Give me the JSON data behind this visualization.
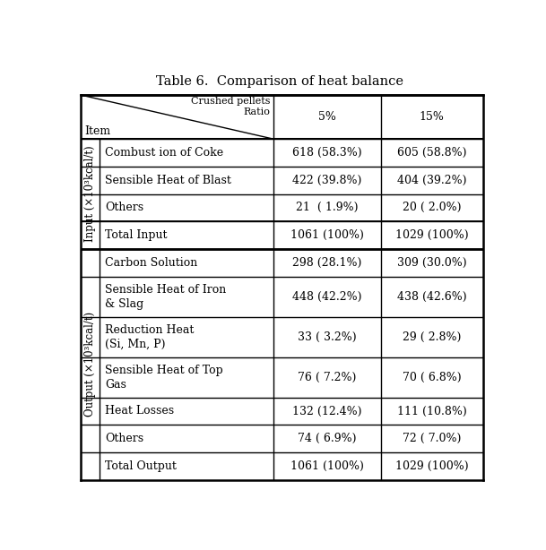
{
  "title": "Table 6.  Comparison of heat balance",
  "header_diagonal_top": "Crushed pellets\nRatio",
  "header_item": "Item",
  "col_headers": [
    "5%",
    "15%"
  ],
  "input_label": "Input (×10³kcal/t)",
  "output_label": "Output (×10³kcal/t)",
  "input_rows": [
    [
      "Combust ion of Coke",
      "618 (58.3%)",
      "605 (58.8%)"
    ],
    [
      "Sensible Heat of Blast",
      "422 (39.8%)",
      "404 (39.2%)"
    ],
    [
      "Others",
      "21  ( 1.9%)",
      "20 ( 2.0%)"
    ]
  ],
  "input_total": [
    "Total Input",
    "1061 (100%)",
    "1029 (100%)"
  ],
  "output_rows": [
    [
      "Carbon Solution",
      "298 (28.1%)",
      "309 (30.0%)"
    ],
    [
      "Sensible Heat of Iron\n& Slag",
      "448 (42.2%)",
      "438 (42.6%)"
    ],
    [
      "Reduction Heat\n(Si, Mn, P)",
      "33 ( 3.2%)",
      "29 ( 2.8%)"
    ],
    [
      "Sensible Heat of Top\nGas",
      "76 ( 7.2%)",
      "70 ( 6.8%)"
    ],
    [
      "Heat Losses",
      "132 (12.4%)",
      "111 (10.8%)"
    ],
    [
      "Others",
      "74 ( 6.9%)",
      "72 ( 7.0%)"
    ]
  ],
  "output_total": [
    "Total Output",
    "1061 (100%)",
    "1029 (100%)"
  ],
  "bg_color": "#ffffff",
  "text_color": "#000000",
  "line_color": "#000000",
  "title_fontsize": 10.5,
  "body_fontsize": 9,
  "header_fontsize": 9,
  "label_fontsize": 8.5
}
